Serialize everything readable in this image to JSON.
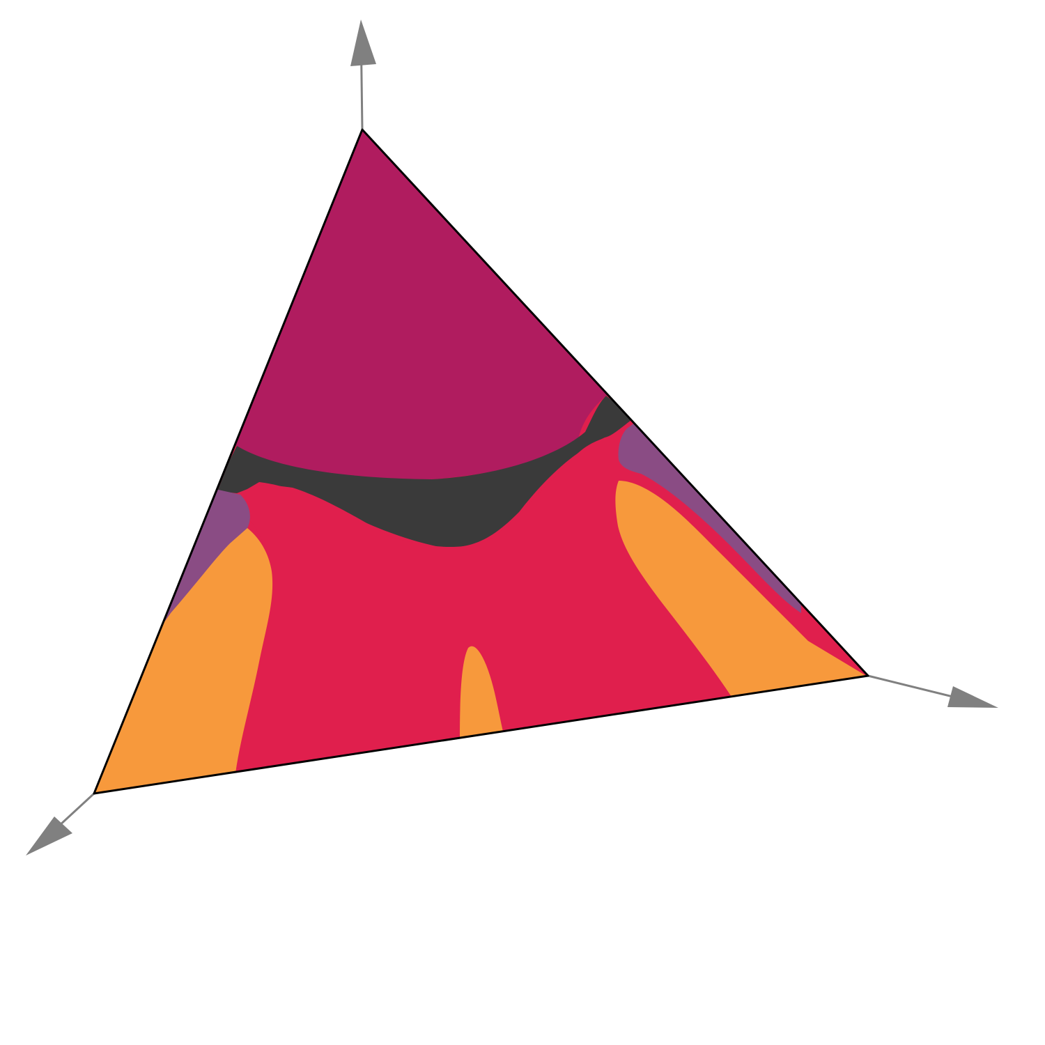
{
  "diagram": {
    "type": "ternary-simplex-region-map",
    "regions": [
      {
        "id": "top",
        "color": "#b01c5f"
      },
      {
        "id": "dark-band",
        "color": "#3a3a3a"
      },
      {
        "id": "center",
        "color": "#e01f4d"
      },
      {
        "id": "side-purple-left",
        "color": "#8a4c84"
      },
      {
        "id": "side-purple-right",
        "color": "#8a4c84"
      },
      {
        "id": "orange-left",
        "color": "#f7993c"
      },
      {
        "id": "orange-right",
        "color": "#f7993c"
      },
      {
        "id": "orange-spike",
        "color": "#f7993c"
      }
    ],
    "colors": {
      "axis": "#808080",
      "edge": "#000000",
      "background": "#ffffff"
    },
    "axes": [
      {
        "id": "axis-up",
        "direction": "up",
        "icon": "arrow-up-icon"
      },
      {
        "id": "axis-right",
        "direction": "right",
        "icon": "arrow-right-icon"
      },
      {
        "id": "axis-down-left",
        "direction": "down-left",
        "icon": "arrow-down-left-icon"
      }
    ]
  }
}
